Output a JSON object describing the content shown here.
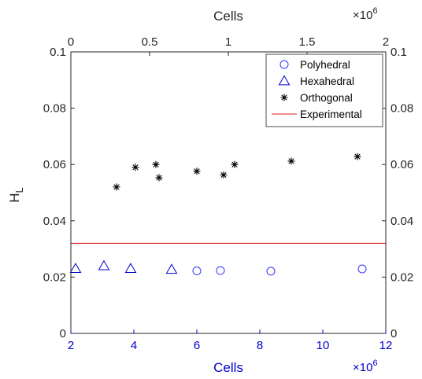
{
  "chart_data": {
    "type": "scatter",
    "xlabel_bottom": "Cells",
    "xlabel_top": "Cells",
    "ylabel_main": "H",
    "ylabel_sub": "L",
    "x_bottom_exponent": "×10",
    "x_bottom_exponent_power": "6",
    "x_top_exponent": "×10",
    "x_top_exponent_power": "6",
    "x_bottom_range": [
      2,
      12
    ],
    "x_bottom_ticks": [
      "2",
      "4",
      "6",
      "8",
      "10",
      "12"
    ],
    "x_top_range": [
      0,
      2
    ],
    "x_top_ticks": [
      "0",
      "0.5",
      "1",
      "1.5",
      "2"
    ],
    "y_range": [
      0,
      0.1
    ],
    "y_ticks": [
      "0",
      "0.02",
      "0.04",
      "0.06",
      "0.08",
      "0.1"
    ],
    "grid": false,
    "legend_position": "top-right",
    "series": [
      {
        "name": "Polyhedral",
        "marker": "circle",
        "color": "#3333ff",
        "axis": "top",
        "x": [
          0.8,
          0.95,
          1.27,
          1.85
        ],
        "y": [
          0.0222,
          0.0223,
          0.0221,
          0.0229
        ]
      },
      {
        "name": "Hexahedral",
        "marker": "triangle",
        "color": "#0000cc",
        "axis": "top",
        "x": [
          0.03,
          0.21,
          0.38,
          0.64
        ],
        "y": [
          0.023,
          0.024,
          0.023,
          0.0227
        ]
      },
      {
        "name": "Orthogonal",
        "marker": "asterisk",
        "color": "#000000",
        "axis": "top",
        "x": [
          0.29,
          0.41,
          0.54,
          0.56,
          0.8,
          0.97,
          1.04,
          1.4,
          1.82
        ],
        "y": [
          0.052,
          0.059,
          0.06,
          0.0553,
          0.0576,
          0.0563,
          0.06,
          0.0612,
          0.0628
        ]
      },
      {
        "name": "Experimental",
        "marker": "line",
        "color": "#dd2222",
        "y": 0.032
      }
    ]
  }
}
